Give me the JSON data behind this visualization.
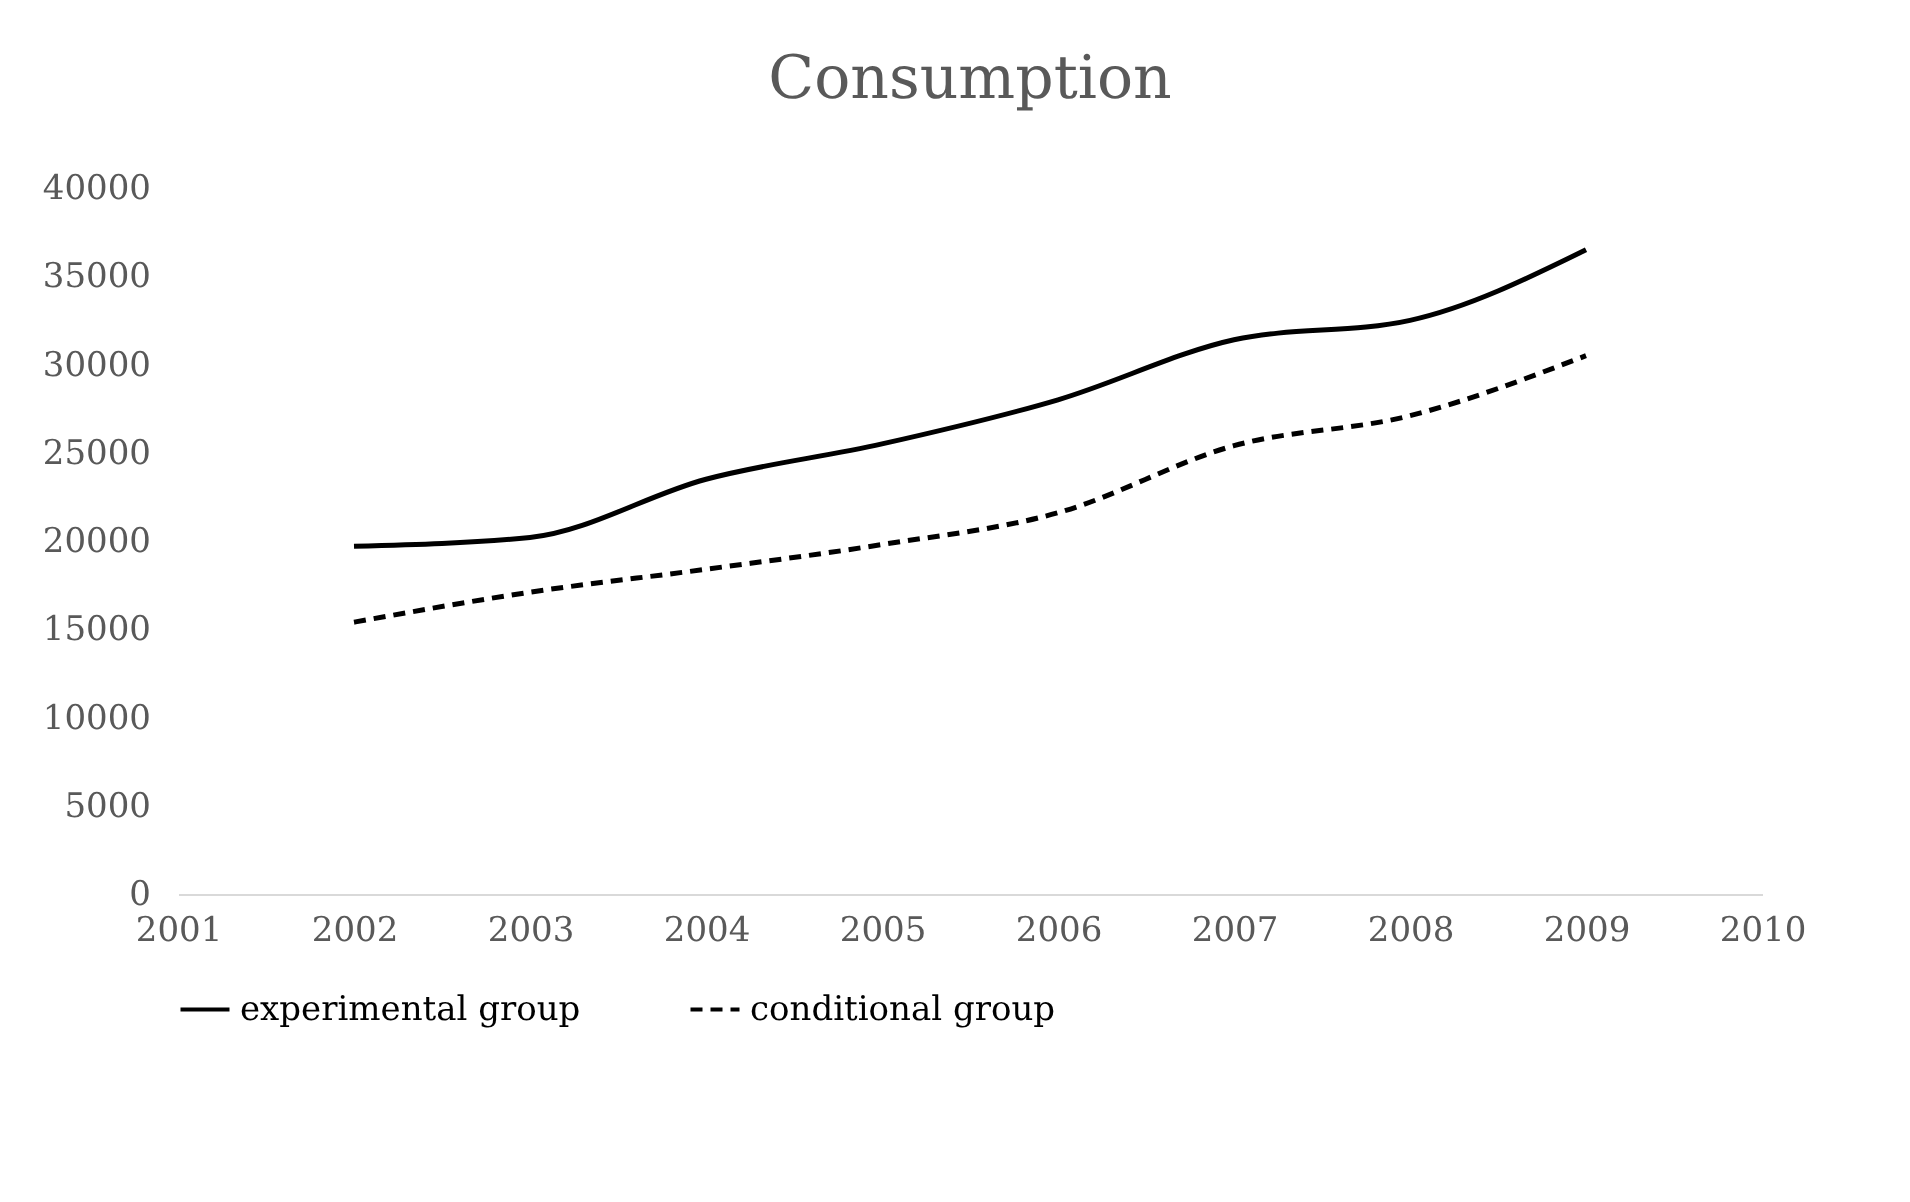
{
  "chart_data": {
    "type": "line",
    "title": "Consumption",
    "x": [
      2002,
      2003,
      2004,
      2005,
      2006,
      2007,
      2008,
      2009
    ],
    "series": [
      {
        "name": "experimental group",
        "color": "#000000",
        "line_style": "solid",
        "values": [
          19700,
          20200,
          23500,
          25500,
          28000,
          31400,
          32500,
          36500
        ]
      },
      {
        "name": "conditional group",
        "color": "#000000",
        "line_style": "dashed",
        "values": [
          15400,
          17100,
          18400,
          19800,
          21600,
          25400,
          27100,
          30500
        ]
      }
    ],
    "xlim": [
      2001,
      2010
    ],
    "xticks": [
      2001,
      2002,
      2003,
      2004,
      2005,
      2006,
      2007,
      2008,
      2009,
      2010
    ],
    "ylim": [
      0,
      40000
    ],
    "yticks": [
      0,
      5000,
      10000,
      15000,
      20000,
      25000,
      30000,
      35000,
      40000
    ],
    "grid": false,
    "legend": "bottom",
    "marker": "none"
  }
}
